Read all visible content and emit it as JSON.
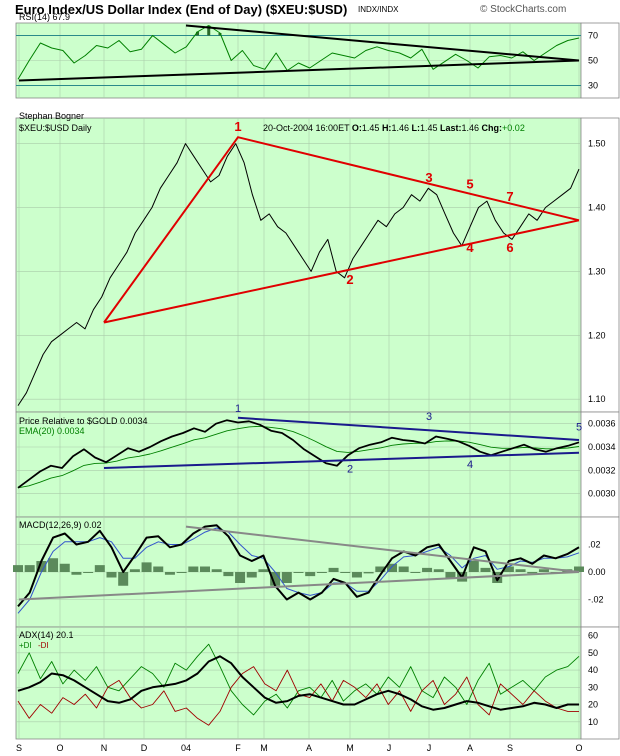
{
  "header": {
    "title": "Euro Index/US Dollar Index (End of Day) ($XEU:$USD)",
    "exchange": "INDX/INDX",
    "copyright": "© StockCharts.com"
  },
  "colors": {
    "panel_bg": "#ccffcc",
    "price_line": "#000000",
    "trendline_red": "#e00000",
    "trendline_blue": "#1a1a8c",
    "rsi_line": "#008000",
    "emaline": "#008000",
    "macd_line": "#000000",
    "signal_line": "#3355cc",
    "histogram": "#5b8a5b",
    "adx_line": "#000000",
    "plus_di": "#008000",
    "minus_di": "#a00000",
    "gray_trend": "#888888"
  },
  "chart_data": [
    {
      "id": "rsi",
      "type": "line",
      "title": "RSI(14) 67.9",
      "ylim": [
        20,
        80
      ],
      "yticks": [
        "70",
        "50",
        "30"
      ],
      "ytick_values": [
        70,
        50,
        30
      ],
      "reference_lines": [
        70,
        30
      ],
      "trendlines": [
        {
          "x": [
            "Jan 2004",
            "Oct 2004"
          ],
          "y": [
            78,
            50
          ]
        },
        {
          "x": [
            "Sep 2003",
            "Oct 2004"
          ],
          "y": [
            34,
            50
          ]
        }
      ],
      "series": [
        {
          "values": [
            35,
            50,
            64,
            60,
            58,
            48,
            54,
            62,
            60,
            66,
            57,
            59,
            70,
            63,
            56,
            61,
            73,
            78,
            72,
            50,
            58,
            46,
            43,
            56,
            42,
            48,
            44,
            50,
            56,
            54,
            52,
            58,
            61,
            58,
            56,
            52,
            59,
            43,
            49,
            55,
            50,
            44,
            53,
            54,
            52,
            57,
            50,
            56,
            62,
            66,
            68
          ]
        }
      ]
    },
    {
      "id": "price",
      "type": "line",
      "caption": "Stephan Bogner",
      "symbol_label": "$XEU:$USD Daily",
      "quote": {
        "date": "20-Oct-2004 16:00",
        "tz": "ET",
        "open_label": "O:",
        "open": "1.45",
        "high_label": "H:",
        "high": "1.46",
        "low_label": "L:",
        "low": "1.45",
        "last_label": "Last:",
        "last": "1.46",
        "change_label": "Chg:",
        "change": "+0.02"
      },
      "ylim": [
        1.08,
        1.54
      ],
      "yticks": [
        "1.50",
        "1.40",
        "1.30",
        "1.20",
        "1.10"
      ],
      "ytick_values": [
        1.5,
        1.4,
        1.3,
        1.2,
        1.1
      ],
      "series": [
        {
          "values": [
            1.09,
            1.11,
            1.14,
            1.17,
            1.19,
            1.2,
            1.21,
            1.22,
            1.21,
            1.24,
            1.26,
            1.29,
            1.31,
            1.33,
            1.36,
            1.38,
            1.4,
            1.43,
            1.45,
            1.47,
            1.5,
            1.48,
            1.46,
            1.44,
            1.45,
            1.48,
            1.5,
            1.47,
            1.42,
            1.38,
            1.39,
            1.37,
            1.36,
            1.34,
            1.32,
            1.3,
            1.33,
            1.35,
            1.3,
            1.29,
            1.32,
            1.34,
            1.36,
            1.38,
            1.37,
            1.39,
            1.4,
            1.42,
            1.41,
            1.43,
            1.42,
            1.39,
            1.36,
            1.34,
            1.37,
            1.4,
            1.41,
            1.38,
            1.36,
            1.35,
            1.37,
            1.39,
            1.38,
            1.4,
            1.41,
            1.42,
            1.43,
            1.46
          ]
        }
      ],
      "trendlines": [
        {
          "x": [
            "Nov 2003",
            "Feb 2004",
            "Oct 2004"
          ],
          "y": [
            1.22,
            1.51,
            1.38
          ]
        },
        {
          "x": [
            "Nov 2003",
            "Oct 2004"
          ],
          "y": [
            1.22,
            1.38
          ]
        }
      ],
      "annotations": [
        {
          "label": "1",
          "x": "Feb 2004",
          "y": 1.52
        },
        {
          "label": "2",
          "x": "May 2004",
          "y": 1.28
        },
        {
          "label": "3",
          "x": "Jul 2004",
          "y": 1.44
        },
        {
          "label": "4",
          "x": "Aug 2004",
          "y": 1.33
        },
        {
          "label": "5",
          "x": "Aug 2004",
          "y": 1.43
        },
        {
          "label": "6",
          "x": "Sep 2004",
          "y": 1.33
        },
        {
          "label": "7",
          "x": "Sep 2004",
          "y": 1.41
        }
      ]
    },
    {
      "id": "price_relative",
      "type": "line",
      "title": "Price Relative to $GOLD 0.0034",
      "ema_label": "EMA(20) 0.0034",
      "ylim": [
        0.0028,
        0.0037
      ],
      "yticks": [
        "0.0036",
        "0.0034",
        "0.0032",
        "0.0030"
      ],
      "ytick_values": [
        0.0036,
        0.0034,
        0.0032,
        0.003
      ],
      "series": [
        {
          "values": [
            0.00305,
            0.00312,
            0.00319,
            0.00324,
            0.00322,
            0.00332,
            0.00338,
            0.00331,
            0.00327,
            0.00333,
            0.00339,
            0.00336,
            0.0034,
            0.00345,
            0.00349,
            0.00352,
            0.00356,
            0.00353,
            0.0036,
            0.00363,
            0.00361,
            0.00362,
            0.00359,
            0.00354,
            0.00352,
            0.00346,
            0.00338,
            0.00332,
            0.00326,
            0.00324,
            0.00333,
            0.00339,
            0.00342,
            0.00344,
            0.00348,
            0.00346,
            0.00345,
            0.00343,
            0.00349,
            0.00347,
            0.00345,
            0.00341,
            0.00336,
            0.00333,
            0.00336,
            0.00339,
            0.00342,
            0.00338,
            0.00336,
            0.00339,
            0.00341,
            0.00344
          ]
        }
      ],
      "trendlines": [
        {
          "x": [
            "Feb 2004",
            "Oct 2004"
          ],
          "y": [
            0.00365,
            0.00346
          ]
        },
        {
          "x": [
            "Nov 2003",
            "Oct 2004"
          ],
          "y": [
            0.00322,
            0.00335
          ]
        }
      ],
      "annotations": [
        {
          "label": "1",
          "x": "Feb 2004",
          "y": 0.0037
        },
        {
          "label": "2",
          "x": "May 2004",
          "y": 0.00318
        },
        {
          "label": "3",
          "x": "Jul 2004",
          "y": 0.00363
        },
        {
          "label": "4",
          "x": "Aug 2004",
          "y": 0.00322
        },
        {
          "label": "5",
          "x": "Oct 2004",
          "y": 0.00354
        }
      ]
    },
    {
      "id": "macd",
      "type": "line",
      "title": "MACD(12,26,9) 0.02",
      "ylim": [
        -0.04,
        0.04
      ],
      "yticks": [
        ".02",
        "0.00",
        "-.02"
      ],
      "ytick_values": [
        0.02,
        0,
        -0.02
      ],
      "series": [
        {
          "name": "MACD",
          "values": [
            -0.025,
            -0.015,
            0.008,
            0.025,
            0.028,
            0.02,
            0.022,
            0.03,
            0.018,
            0.0,
            0.012,
            0.025,
            0.026,
            0.018,
            0.02,
            0.028,
            0.033,
            0.034,
            0.026,
            0.012,
            0.008,
            0.012,
            -0.01,
            -0.02,
            -0.015,
            -0.02,
            -0.015,
            -0.005,
            -0.008,
            -0.018,
            -0.015,
            -0.002,
            0.01,
            0.015,
            0.012,
            0.018,
            0.02,
            0.008,
            -0.004,
            0.018,
            0.015,
            -0.006,
            0.008,
            0.01,
            0.006,
            0.012,
            0.01,
            0.013,
            0.018
          ]
        },
        {
          "name": "Signal",
          "values": [
            -0.03,
            -0.02,
            0.0,
            0.015,
            0.022,
            0.022,
            0.022,
            0.025,
            0.022,
            0.01,
            0.01,
            0.018,
            0.022,
            0.02,
            0.02,
            0.024,
            0.029,
            0.032,
            0.029,
            0.02,
            0.012,
            0.01,
            0.0,
            -0.012,
            -0.015,
            -0.017,
            -0.015,
            -0.008,
            -0.008,
            -0.014,
            -0.014,
            -0.006,
            0.004,
            0.011,
            0.012,
            0.015,
            0.018,
            0.012,
            0.003,
            0.01,
            0.012,
            0.002,
            0.004,
            0.008,
            0.007,
            0.01,
            0.01,
            0.011,
            0.014
          ]
        }
      ],
      "histogram": [
        0.005,
        0.005,
        0.008,
        0.01,
        0.006,
        -0.002,
        0.0,
        0.005,
        -0.004,
        -0.01,
        0.002,
        0.007,
        0.004,
        -0.002,
        0.0,
        0.004,
        0.004,
        0.002,
        -0.003,
        -0.008,
        -0.004,
        0.002,
        -0.01,
        -0.008,
        0.0,
        -0.003,
        0.0,
        0.003,
        0.0,
        -0.004,
        -0.001,
        0.004,
        0.006,
        0.004,
        0.0,
        0.003,
        0.002,
        -0.004,
        -0.007,
        0.008,
        0.003,
        -0.008,
        0.004,
        0.002,
        -0.001,
        0.002,
        0.0,
        0.002,
        0.004
      ],
      "trendlines": [
        {
          "x": [
            "Jan 2004",
            "Oct 2004"
          ],
          "y": [
            0.033,
            0.0
          ]
        },
        {
          "x": [
            "Sep 2003",
            "Oct 2004"
          ],
          "y": [
            -0.02,
            0.0
          ]
        }
      ]
    },
    {
      "id": "adx",
      "type": "line",
      "title": "ADX(14) 20.1",
      "legend": [
        "+DI",
        "-DI"
      ],
      "ylim": [
        0,
        65
      ],
      "yticks": [
        "60",
        "50",
        "40",
        "30",
        "20",
        "10"
      ],
      "ytick_values": [
        60,
        50,
        40,
        30,
        20,
        10
      ],
      "series": [
        {
          "name": "ADX",
          "values": [
            28,
            30,
            33,
            38,
            37,
            34,
            30,
            26,
            22,
            21,
            23,
            28,
            30,
            31,
            32,
            34,
            38,
            45,
            48,
            44,
            36,
            30,
            24,
            21,
            22,
            25,
            26,
            24,
            22,
            20,
            20,
            23,
            26,
            28,
            26,
            23,
            19,
            17,
            18,
            20,
            22,
            21,
            19,
            17,
            18,
            19,
            21,
            20,
            18,
            20,
            20
          ]
        },
        {
          "name": "+DI",
          "values": [
            38,
            50,
            35,
            45,
            32,
            40,
            34,
            42,
            30,
            28,
            35,
            42,
            38,
            30,
            44,
            40,
            48,
            55,
            42,
            28,
            20,
            14,
            22,
            26,
            18,
            28,
            30,
            24,
            34,
            22,
            28,
            32,
            26,
            36,
            30,
            42,
            28,
            24,
            36,
            30,
            20,
            34,
            44,
            26,
            30,
            34,
            28,
            36,
            40,
            42,
            48
          ]
        },
        {
          "name": "-DI",
          "values": [
            22,
            12,
            20,
            15,
            24,
            20,
            26,
            18,
            30,
            34,
            24,
            18,
            20,
            28,
            16,
            18,
            12,
            8,
            16,
            30,
            38,
            42,
            32,
            28,
            40,
            26,
            24,
            32,
            22,
            34,
            30,
            24,
            32,
            20,
            28,
            16,
            28,
            34,
            20,
            26,
            36,
            20,
            14,
            32,
            26,
            20,
            28,
            22,
            18,
            16,
            16
          ]
        }
      ],
      "xticks": [
        "S",
        "O",
        "N",
        "D",
        "04",
        "F",
        "M",
        "A",
        "M",
        "J",
        "J",
        "A",
        "S",
        "O"
      ]
    }
  ]
}
